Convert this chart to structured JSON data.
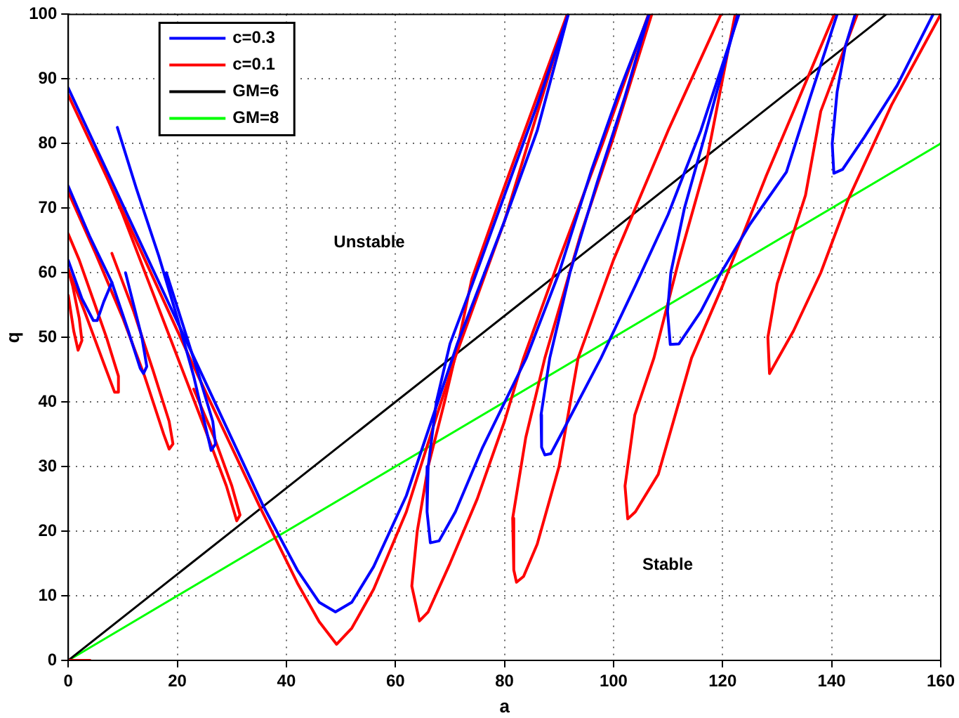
{
  "chart_data": {
    "type": "line",
    "xlabel": "a",
    "ylabel": "q",
    "xlim": [
      0,
      160
    ],
    "ylim": [
      0,
      100
    ],
    "xticks": [
      0,
      20,
      40,
      60,
      80,
      100,
      120,
      140,
      160
    ],
    "yticks": [
      0,
      10,
      20,
      30,
      40,
      50,
      60,
      70,
      80,
      90,
      100
    ],
    "grid": true,
    "legend": "top left",
    "marker": "none",
    "line_style": "solid",
    "annotations": [
      "Unstable",
      "Stable"
    ],
    "series": [
      {
        "name": "c=0.3",
        "color": "#0000ff",
        "x": [
          0,
          2.5,
          4.6,
          5.3,
          6.5,
          8,
          null,
          0,
          4,
          8,
          11,
          13.2,
          13.8,
          14.4,
          13.5,
          12,
          10.5,
          null,
          9,
          12.5,
          16.6,
          20,
          23,
          25.5,
          26.2,
          27,
          26.5,
          24,
          21,
          18,
          null,
          0,
          10,
          23.1,
          35.7,
          42,
          46,
          49,
          52,
          56,
          62,
          71.3,
          80,
          86,
          91.7,
          null,
          91.7,
          86,
          80,
          74,
          70,
          67.5,
          66,
          65.8,
          66.4,
          68,
          71,
          76,
          84,
          90,
          96,
          101,
          106.5,
          null,
          106.5,
          102,
          97,
          92,
          88.3,
          86.7,
          86.8,
          87.4,
          88.5,
          91,
          97.7,
          104,
          110,
          116,
          123,
          null,
          122.8,
          117,
          113,
          110.5,
          109.9,
          110.4,
          112,
          116,
          119.5,
          125,
          131.7,
          136,
          141,
          null,
          144.3,
          142.5,
          141,
          140.1,
          140.4,
          142,
          146,
          152,
          158.6
        ],
        "values": [
          61.9,
          56,
          52.6,
          52.6,
          55.5,
          58.5,
          null,
          73.4,
          65.5,
          58.5,
          51,
          45.2,
          44.4,
          45.5,
          50,
          55,
          60,
          null,
          82.5,
          73,
          62.6,
          53,
          44,
          35,
          32.5,
          33.5,
          37,
          44,
          52,
          60,
          null,
          88.6,
          70.5,
          46.8,
          24,
          14,
          9,
          7.5,
          9,
          14.5,
          25.5,
          48.9,
          68,
          82,
          100,
          null,
          100,
          86,
          72,
          58,
          49,
          40,
          30,
          23,
          18.2,
          18.5,
          23,
          33,
          46.8,
          60,
          76,
          88,
          100,
          null,
          100,
          87,
          74,
          60,
          46.8,
          38,
          33,
          31.8,
          32,
          36,
          46.8,
          58,
          69,
          82,
          100,
          null,
          100,
          82,
          70,
          60,
          54,
          48.9,
          49,
          54,
          59.7,
          67.5,
          75.6,
          87,
          100,
          null,
          100,
          95,
          88,
          80,
          75.4,
          76,
          81,
          89,
          100
        ]
      },
      {
        "name": "c=0.1",
        "color": "#ff0000",
        "x": [
          0,
          4,
          null,
          0,
          1,
          1.8,
          2.5,
          2,
          0.8,
          0,
          null,
          0,
          3,
          6.5,
          8.5,
          9.2,
          9.2,
          7,
          4.5,
          2,
          0,
          null,
          0,
          5,
          10,
          14,
          17.5,
          18.5,
          19.2,
          18.5,
          15.5,
          12,
          8,
          null,
          5,
          10,
          15,
          20,
          25,
          29,
          30.9,
          31.5,
          30,
          27,
          23,
          null,
          0,
          10,
          23,
          35,
          42,
          46,
          49.2,
          52,
          56,
          62,
          71,
          80,
          91.5,
          null,
          91.5,
          85,
          79,
          74,
          71.5,
          69,
          66,
          64,
          63,
          64.4,
          66,
          70,
          75,
          80,
          83.5,
          90,
          98,
          106.4,
          null,
          107,
          100,
          94,
          87.4,
          83.9,
          81.5,
          81.7,
          82.2,
          83.5,
          86,
          90,
          93.5,
          100,
          110,
          119.7,
          null,
          122.3,
          117,
          112,
          107.4,
          103.9,
          102.1,
          102.6,
          104,
          108.2,
          114.3,
          120,
          128,
          134,
          140.5,
          null,
          144.7,
          138,
          135.2,
          130,
          128.3,
          128.6,
          130,
          133,
          138,
          143,
          151,
          160
        ],
        "values": [
          0,
          0,
          null,
          56.5,
          51,
          48,
          49.5,
          53,
          58,
          60.5,
          null,
          60.5,
          54,
          46,
          41.5,
          41.5,
          44,
          50,
          56,
          62,
          66,
          null,
          72.5,
          63,
          53,
          44,
          35,
          32.7,
          33.5,
          37,
          45,
          54,
          63,
          null,
          79,
          69,
          58,
          47,
          36,
          27,
          21.6,
          22.5,
          27,
          34,
          42,
          null,
          87.5,
          69.5,
          45.5,
          24,
          12,
          6,
          2.5,
          5,
          11,
          23,
          47,
          68,
          100,
          null,
          100,
          85,
          71,
          59,
          49,
          40,
          30,
          20,
          11.5,
          6.1,
          7.5,
          15,
          25,
          37,
          46.8,
          62,
          80,
          100,
          null,
          100,
          81,
          66,
          46.8,
          34.5,
          22,
          14,
          12.1,
          13,
          18,
          30,
          46.8,
          62,
          82,
          100,
          null,
          100,
          77,
          62,
          46.8,
          38,
          27,
          21.9,
          23,
          28.8,
          46.8,
          58,
          75,
          87,
          100,
          null,
          100,
          85,
          72,
          58.3,
          50,
          44.4,
          46.5,
          51,
          60,
          71.3,
          86,
          100
        ]
      },
      {
        "name": "GM=6",
        "color": "#000000",
        "x": [
          0,
          150
        ],
        "values": [
          0,
          100
        ]
      },
      {
        "name": "GM=8",
        "color": "#00ff00",
        "x": [
          0,
          160
        ],
        "values": [
          0,
          80
        ]
      }
    ]
  }
}
